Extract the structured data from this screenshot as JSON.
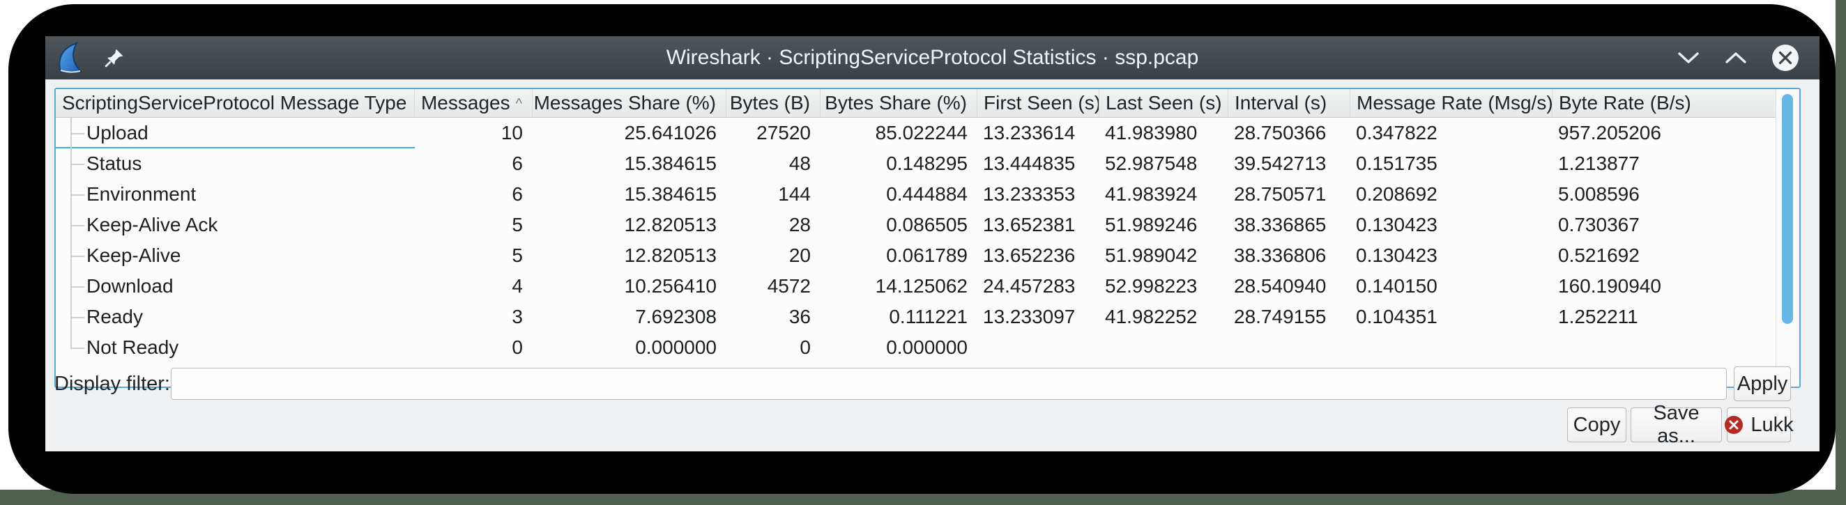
{
  "window": {
    "title": "Wireshark · ScriptingServiceProtocol Statistics · ssp.pcap",
    "controls": {
      "minimize": "minimize",
      "maximize": "maximize",
      "close": "close"
    }
  },
  "table": {
    "sort_indicator": "^",
    "columns": [
      {
        "label": "ScriptingServiceProtocol Message Type",
        "align": "left"
      },
      {
        "label": "Messages",
        "align": "right",
        "sorted": "asc"
      },
      {
        "label": "Messages Share (%)",
        "align": "right"
      },
      {
        "label": "Bytes (B)",
        "align": "right"
      },
      {
        "label": "Bytes Share (%)",
        "align": "right"
      },
      {
        "label": "First Seen (s)",
        "align": "left"
      },
      {
        "label": "Last Seen (s)",
        "align": "left"
      },
      {
        "label": "Interval (s)",
        "align": "left"
      },
      {
        "label": "Message Rate (Msg/s)",
        "align": "left"
      },
      {
        "label": "Byte Rate (B/s)",
        "align": "left"
      }
    ],
    "rows": [
      {
        "selected": true,
        "cells": [
          "Upload",
          "10",
          "25.641026",
          "27520",
          "85.022244",
          "13.233614",
          "41.983980",
          "28.750366",
          "0.347822",
          "957.205206"
        ]
      },
      {
        "selected": false,
        "cells": [
          "Status",
          "6",
          "15.384615",
          "48",
          "0.148295",
          "13.444835",
          "52.987548",
          "39.542713",
          "0.151735",
          "1.213877"
        ]
      },
      {
        "selected": false,
        "cells": [
          "Environment",
          "6",
          "15.384615",
          "144",
          "0.444884",
          "13.233353",
          "41.983924",
          "28.750571",
          "0.208692",
          "5.008596"
        ]
      },
      {
        "selected": false,
        "cells": [
          "Keep-Alive Ack",
          "5",
          "12.820513",
          "28",
          "0.086505",
          "13.652381",
          "51.989246",
          "38.336865",
          "0.130423",
          "0.730367"
        ]
      },
      {
        "selected": false,
        "cells": [
          "Keep-Alive",
          "5",
          "12.820513",
          "20",
          "0.061789",
          "13.652236",
          "51.989042",
          "38.336806",
          "0.130423",
          "0.521692"
        ]
      },
      {
        "selected": false,
        "cells": [
          "Download",
          "4",
          "10.256410",
          "4572",
          "14.125062",
          "24.457283",
          "52.998223",
          "28.540940",
          "0.140150",
          "160.190940"
        ]
      },
      {
        "selected": false,
        "cells": [
          "Ready",
          "3",
          "7.692308",
          "36",
          "0.111221",
          "13.233097",
          "41.982252",
          "28.749155",
          "0.104351",
          "1.252211"
        ]
      },
      {
        "selected": false,
        "cells": [
          "Not Ready",
          "0",
          "0.000000",
          "0",
          "0.000000",
          "",
          "",
          "",
          "",
          ""
        ]
      }
    ]
  },
  "filter": {
    "label": "Display filter:",
    "value": "",
    "apply_label": "Apply"
  },
  "footer_buttons": {
    "copy": "Copy",
    "save_as": "Save as...",
    "close": "Lukk"
  },
  "colors": {
    "accent": "#3daee6",
    "titlebar_top": "#4e565c",
    "titlebar_bottom": "#3a4147",
    "close_button_red": "#b52a21",
    "desktop_edge_green": "#4f604f"
  }
}
